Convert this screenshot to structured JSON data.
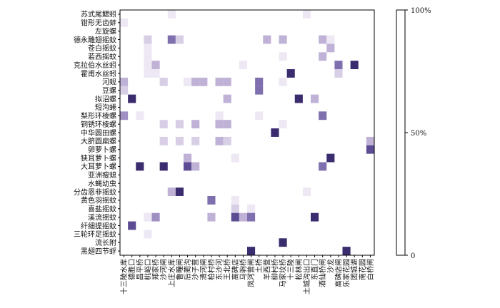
{
  "chart_data": {
    "type": "heatmap",
    "title": "",
    "xlabel": "",
    "ylabel": "",
    "rows": [
      "苏式尾鳃蚓",
      "钳形无齿蚌",
      "左旋螺",
      "德永雕翅摇蚊",
      "苍白摇蚊",
      "若西摇蚊",
      "克拉伯水丝蚓",
      "霍甫水丝蚓",
      "河蚬",
      "豆螺",
      "拟沼螺",
      "短沟蜷",
      "梨形环棱螺",
      "铜锈环棱螺",
      "中华圆田螺",
      "大脐圆扁螺",
      "卵萝卜螺",
      "狭耳萝卜螺",
      "大耳萝卜螺",
      "亚洲瘦螅",
      "水蝇幼虫",
      "分齿恩非摇蚊",
      "黄色羽摇蚊",
      "喜盐摇蚊",
      "溪流摇蚊",
      "纤细提摇蚊",
      "三轮环足摇蚊",
      "流长附",
      "黑翅四节蜉"
    ],
    "columns": [
      "十三陵水库",
      "德胜口",
      "昌平桥",
      "桃峪口",
      "郑家桥",
      "沙河闸",
      "上庄水库",
      "鲁疃闸",
      "后蔺沟",
      "沙子营",
      "清河闸",
      "柏村桥",
      "东沙河",
      "王北桥",
      "高碑店",
      "马驹桥",
      "凤河营闸",
      "土桥",
      "羊西营",
      "柳村桥",
      "马家坟桥",
      "十三陵",
      "松林闸",
      "土城沟出口",
      "东直门",
      "酒仙桥闸",
      "沙龙",
      "高碑店闸",
      "乐家花园",
      "团城湖",
      "南花园",
      "白桥闸"
    ],
    "colorbar": {
      "min": 0,
      "max": 100,
      "ticks": [
        "0",
        "50%",
        "100%"
      ]
    },
    "colors": [
      "#ffffff",
      "#ede8f4",
      "#d8cfe6",
      "#bfb2d6",
      "#9f8fc3",
      "#7f6fae",
      "#5c4c93",
      "#3a2c6e"
    ],
    "cells": [
      [
        0,
        6,
        10
      ],
      [
        0,
        23,
        10
      ],
      [
        1,
        0,
        10
      ],
      [
        3,
        3,
        15
      ],
      [
        3,
        6,
        70
      ],
      [
        3,
        7,
        15
      ],
      [
        3,
        18,
        40
      ],
      [
        3,
        20,
        40
      ],
      [
        3,
        25,
        40
      ],
      [
        3,
        26,
        10
      ],
      [
        4,
        3,
        10
      ],
      [
        4,
        26,
        30
      ],
      [
        5,
        3,
        10
      ],
      [
        5,
        20,
        10
      ],
      [
        5,
        25,
        30
      ],
      [
        6,
        3,
        10
      ],
      [
        6,
        4,
        30
      ],
      [
        6,
        15,
        10
      ],
      [
        6,
        27,
        60
      ],
      [
        6,
        29,
        95
      ],
      [
        7,
        3,
        10
      ],
      [
        7,
        4,
        10
      ],
      [
        7,
        21,
        95
      ],
      [
        7,
        27,
        20
      ],
      [
        8,
        0,
        40
      ],
      [
        8,
        5,
        20
      ],
      [
        8,
        8,
        10
      ],
      [
        8,
        9,
        30
      ],
      [
        8,
        10,
        30
      ],
      [
        8,
        12,
        30
      ],
      [
        8,
        13,
        40
      ],
      [
        8,
        17,
        60
      ],
      [
        8,
        20,
        10
      ],
      [
        9,
        0,
        20
      ],
      [
        9,
        17,
        60
      ],
      [
        10,
        1,
        95
      ],
      [
        10,
        13,
        30
      ],
      [
        10,
        22,
        95
      ],
      [
        10,
        24,
        30
      ],
      [
        12,
        0,
        50
      ],
      [
        12,
        2,
        10
      ],
      [
        12,
        12,
        10
      ],
      [
        12,
        17,
        10
      ],
      [
        12,
        25,
        60
      ],
      [
        13,
        5,
        20
      ],
      [
        13,
        7,
        15
      ],
      [
        13,
        9,
        40
      ],
      [
        13,
        12,
        30
      ],
      [
        13,
        13,
        30
      ],
      [
        13,
        20,
        10
      ],
      [
        14,
        19,
        95
      ],
      [
        15,
        5,
        20
      ],
      [
        15,
        7,
        15
      ],
      [
        15,
        9,
        20
      ],
      [
        15,
        12,
        30
      ],
      [
        15,
        13,
        20
      ],
      [
        15,
        31,
        40
      ],
      [
        16,
        31,
        85
      ],
      [
        17,
        8,
        30
      ],
      [
        17,
        14,
        10
      ],
      [
        17,
        26,
        95
      ],
      [
        18,
        2,
        95
      ],
      [
        18,
        5,
        95
      ],
      [
        18,
        8,
        75
      ],
      [
        18,
        9,
        30
      ],
      [
        18,
        25,
        70
      ],
      [
        21,
        6,
        40
      ],
      [
        21,
        7,
        95
      ],
      [
        21,
        23,
        10
      ],
      [
        22,
        11,
        70
      ],
      [
        22,
        14,
        10
      ],
      [
        23,
        14,
        20
      ],
      [
        23,
        16,
        10
      ],
      [
        24,
        3,
        10
      ],
      [
        24,
        4,
        50
      ],
      [
        24,
        11,
        30
      ],
      [
        24,
        14,
        80
      ],
      [
        24,
        15,
        40
      ],
      [
        24,
        16,
        60
      ],
      [
        24,
        24,
        95
      ],
      [
        25,
        1,
        80
      ],
      [
        26,
        3,
        10
      ],
      [
        27,
        20,
        95
      ],
      [
        28,
        16,
        95
      ],
      [
        28,
        28,
        95
      ]
    ]
  }
}
